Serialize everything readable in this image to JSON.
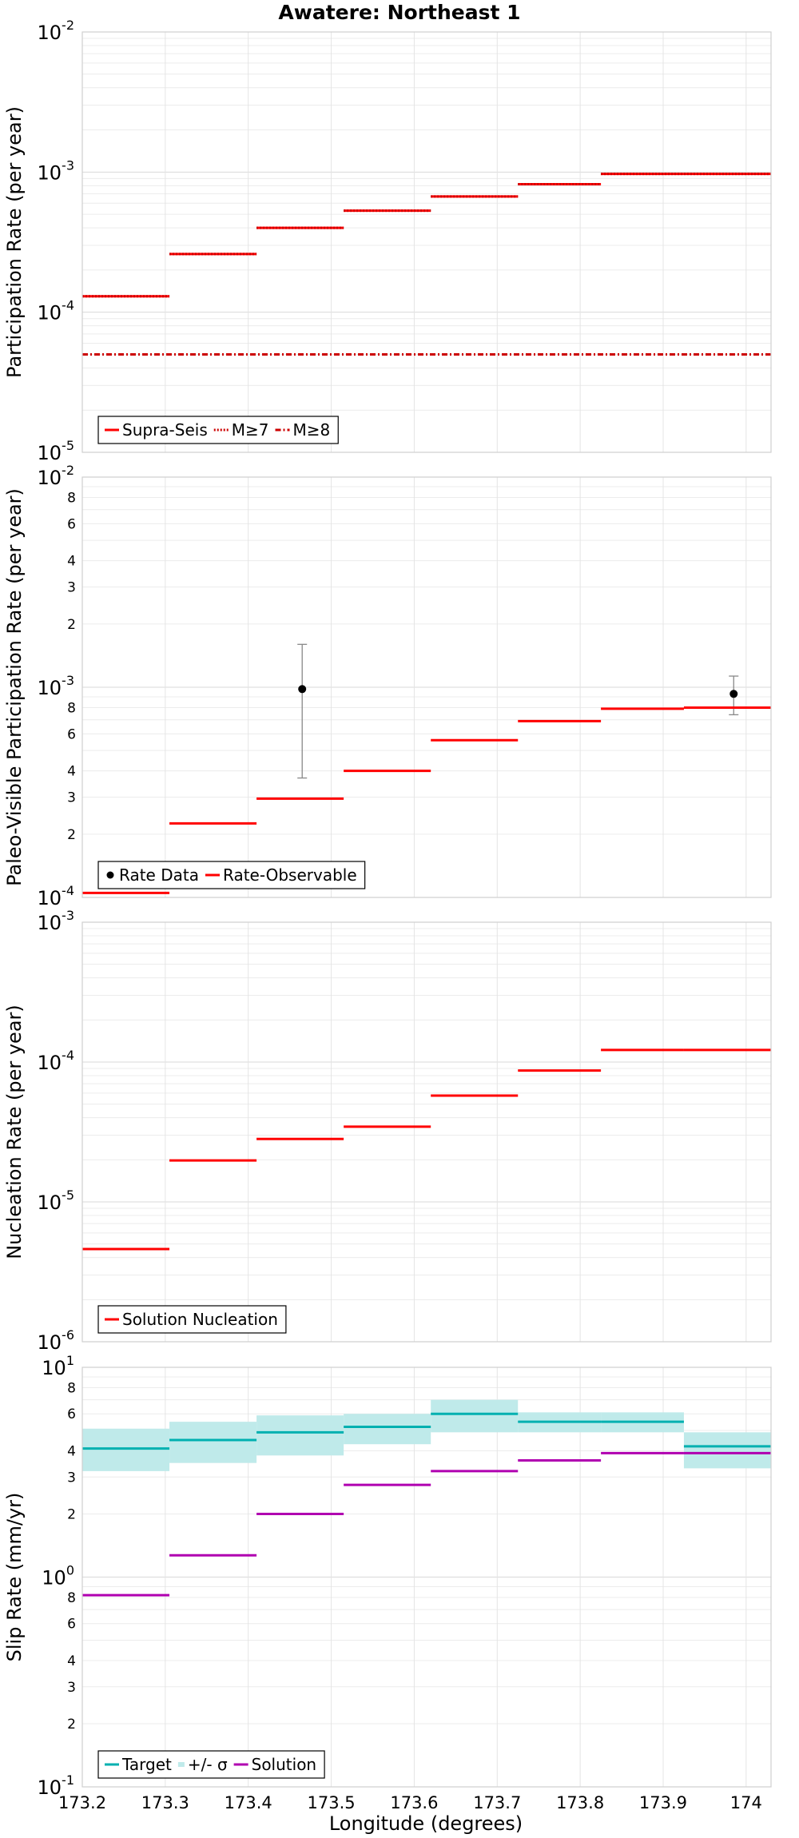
{
  "chart_data": {
    "title": "Awatere: Northeast 1",
    "xlabel": "Longitude (degrees)",
    "xlim": [
      173.2,
      174.03
    ],
    "xticks": [
      "173.2",
      "173.3",
      "173.4",
      "173.5",
      "173.6",
      "173.7",
      "173.8",
      "173.9",
      "174"
    ],
    "segment_edges": [
      173.2,
      173.305,
      173.41,
      173.515,
      173.62,
      173.725,
      173.825,
      173.925,
      174.03
    ],
    "panels": [
      {
        "type": "line",
        "scale": "log",
        "ylabel": "Participation Rate (per year)",
        "ylim": [
          1e-05,
          0.01
        ],
        "grid": true,
        "legend_position": "bottom-left",
        "series": [
          {
            "name": "Supra-Seis",
            "color": "#ff0000",
            "style": "solid",
            "kind": "step",
            "values": [
              0.00013,
              0.00026,
              0.0004,
              0.00053,
              0.00067,
              0.00082,
              0.00097,
              0.00097
            ]
          },
          {
            "name": "M≥7",
            "color": "#cc0000",
            "style": "dotted",
            "kind": "step",
            "values": [
              0.00013,
              0.00026,
              0.0004,
              0.00053,
              0.00067,
              0.00082,
              0.00097,
              0.00097
            ]
          },
          {
            "name": "M≥8",
            "color": "#cc0000",
            "style": "dashdot",
            "kind": "flat",
            "values": [
              5e-05
            ]
          }
        ]
      },
      {
        "type": "line",
        "scale": "log",
        "ylabel": "Paleo-Visible Participation Rate (per year)",
        "ylim": [
          0.0001,
          0.01
        ],
        "grid": true,
        "legend_position": "bottom-left",
        "series": [
          {
            "name": "Rate Data",
            "color": "#000000",
            "kind": "points",
            "points": [
              {
                "x": 173.465,
                "y": 0.00098,
                "lo": 0.00037,
                "hi": 0.0016
              },
              {
                "x": 173.985,
                "y": 0.00093,
                "lo": 0.00074,
                "hi": 0.00113
              }
            ]
          },
          {
            "name": "Rate-Observable",
            "color": "#ff0000",
            "style": "solid",
            "kind": "step",
            "values": [
              0.000105,
              0.000225,
              0.000295,
              0.0004,
              0.00056,
              0.00069,
              0.00079,
              0.0008
            ]
          }
        ]
      },
      {
        "type": "line",
        "scale": "log",
        "ylabel": "Nucleation Rate (per year)",
        "ylim": [
          1e-06,
          0.001
        ],
        "grid": true,
        "legend_position": "bottom-left",
        "series": [
          {
            "name": "Solution Nucleation",
            "color": "#ff0000",
            "style": "solid",
            "kind": "step",
            "values": [
              4.6e-06,
              1.98e-05,
              2.82e-05,
              3.45e-05,
              5.75e-05,
              8.7e-05,
              0.000122,
              0.000122
            ]
          }
        ]
      },
      {
        "type": "line",
        "scale": "log",
        "ylabel": "Slip Rate (mm/yr)",
        "ylim": [
          0.1,
          10
        ],
        "grid": true,
        "legend_position": "bottom-left",
        "series": [
          {
            "name": "Target",
            "color": "#00b0b0",
            "style": "solid",
            "kind": "step",
            "values": [
              4.1,
              4.5,
              4.9,
              5.2,
              6.0,
              5.5,
              5.5,
              4.2
            ]
          },
          {
            "name": "+/- σ",
            "color": "#bfeaea",
            "kind": "band",
            "lo": [
              3.2,
              3.5,
              3.8,
              4.3,
              4.9,
              4.9,
              4.9,
              3.3
            ],
            "hi": [
              5.1,
              5.5,
              5.9,
              6.0,
              7.0,
              6.1,
              6.1,
              4.9
            ]
          },
          {
            "name": "Solution",
            "color": "#b000b0",
            "style": "solid",
            "kind": "step",
            "values": [
              0.82,
              1.27,
              2.0,
              2.75,
              3.2,
              3.6,
              3.9,
              3.9
            ]
          }
        ]
      }
    ]
  }
}
